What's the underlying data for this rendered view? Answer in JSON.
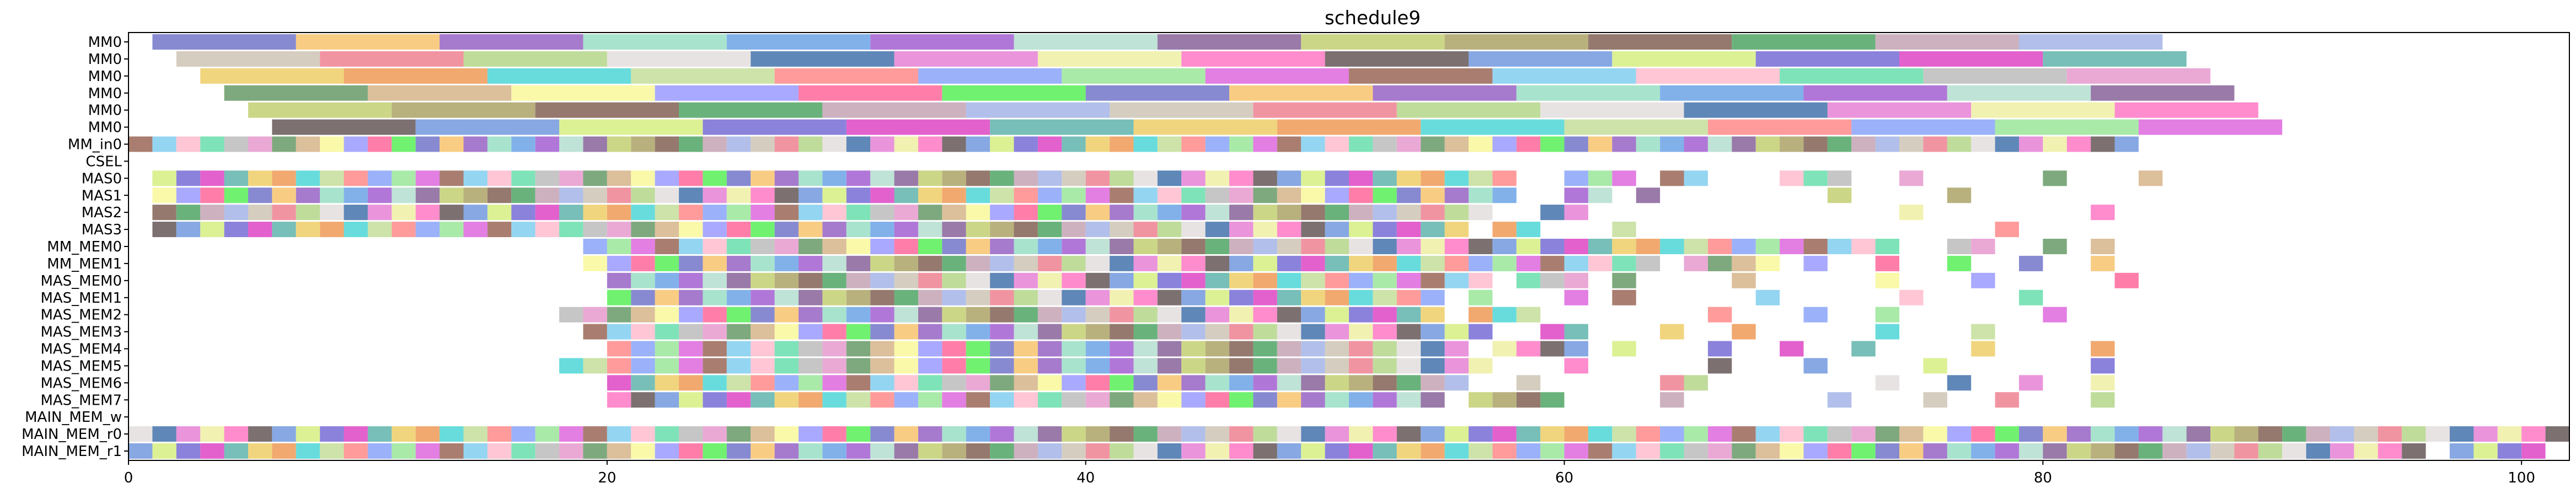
{
  "chart_data": {
    "type": "gantt",
    "title": "schedule9",
    "xlabel": "",
    "ylabel": "",
    "xlim": [
      0,
      102
    ],
    "x_ticks": [
      0,
      20,
      40,
      60,
      80,
      100
    ],
    "grid": false,
    "legend": "none",
    "rows": [
      "MM0",
      "MM0",
      "MM0",
      "MM0",
      "MM0",
      "MM0",
      "MM_in0",
      "CSEL",
      "MAS0",
      "MAS1",
      "MAS2",
      "MAS3",
      "MM_MEM0",
      "MM_MEM1",
      "MAS_MEM0",
      "MAS_MEM1",
      "MAS_MEM2",
      "MAS_MEM3",
      "MAS_MEM4",
      "MAS_MEM5",
      "MAS_MEM6",
      "MAS_MEM7",
      "MAIN_MEM_w",
      "MAIN_MEM_r0",
      "MAIN_MEM_r1"
    ],
    "long_rows": [
      {
        "row": 0,
        "start": 1.0,
        "duration": 6.0,
        "count": 14
      },
      {
        "row": 1,
        "start": 2.0,
        "duration": 6.0,
        "count": 14
      },
      {
        "row": 2,
        "start": 3.0,
        "duration": 6.0,
        "count": 14
      },
      {
        "row": 3,
        "start": 4.0,
        "duration": 6.0,
        "count": 14
      },
      {
        "row": 4,
        "start": 5.0,
        "duration": 6.0,
        "count": 14
      },
      {
        "row": 5,
        "start": 6.0,
        "duration": 6.0,
        "count": 14
      }
    ],
    "short_rows": [
      {
        "row": 6,
        "segments": [
          [
            0,
            84
          ]
        ]
      },
      {
        "row": 8,
        "segments": [
          [
            1,
            58
          ],
          [
            60,
            63
          ],
          [
            64,
            66
          ],
          [
            69,
            72
          ],
          [
            74,
            75
          ],
          [
            80,
            81
          ],
          [
            84,
            85
          ]
        ]
      },
      {
        "row": 9,
        "segments": [
          [
            1,
            58
          ],
          [
            60,
            62
          ],
          [
            63,
            64
          ],
          [
            71,
            72
          ],
          [
            76,
            77
          ]
        ]
      },
      {
        "row": 10,
        "segments": [
          [
            1,
            19
          ],
          [
            19,
            57
          ],
          [
            59,
            61
          ],
          [
            74,
            75
          ],
          [
            82,
            83
          ]
        ]
      },
      {
        "row": 11,
        "segments": [
          [
            1,
            19
          ],
          [
            19,
            56
          ],
          [
            57,
            59
          ],
          [
            62,
            63
          ],
          [
            78,
            79
          ]
        ]
      },
      {
        "row": 12,
        "segments": [
          [
            19,
            74
          ],
          [
            76,
            78
          ],
          [
            80,
            81
          ],
          [
            82,
            83
          ]
        ]
      },
      {
        "row": 13,
        "segments": [
          [
            19,
            64
          ],
          [
            65,
            69
          ],
          [
            70,
            71
          ],
          [
            73,
            74
          ],
          [
            76,
            77
          ],
          [
            79,
            80
          ],
          [
            82,
            83
          ]
        ]
      },
      {
        "row": 14,
        "segments": [
          [
            20,
            57
          ],
          [
            58,
            61
          ],
          [
            62,
            63
          ],
          [
            67,
            68
          ],
          [
            73,
            74
          ],
          [
            77,
            78
          ],
          [
            83,
            84
          ]
        ]
      },
      {
        "row": 15,
        "segments": [
          [
            20,
            55
          ],
          [
            56,
            57
          ],
          [
            60,
            61
          ],
          [
            62,
            63
          ],
          [
            68,
            69
          ],
          [
            74,
            75
          ],
          [
            79,
            80
          ]
        ]
      },
      {
        "row": 16,
        "segments": [
          [
            18,
            55
          ],
          [
            56,
            59
          ],
          [
            66,
            67
          ],
          [
            70,
            71
          ],
          [
            73,
            74
          ],
          [
            80,
            81
          ]
        ]
      },
      {
        "row": 17,
        "segments": [
          [
            19,
            57
          ],
          [
            59,
            61
          ],
          [
            64,
            65
          ],
          [
            67,
            68
          ],
          [
            73,
            74
          ],
          [
            77,
            78
          ]
        ]
      },
      {
        "row": 18,
        "segments": [
          [
            20,
            56
          ],
          [
            57,
            61
          ],
          [
            62,
            63
          ],
          [
            66,
            67
          ],
          [
            69,
            70
          ],
          [
            72,
            73
          ],
          [
            77,
            78
          ],
          [
            82,
            83
          ]
        ]
      },
      {
        "row": 19,
        "segments": [
          [
            18,
            57
          ],
          [
            60,
            61
          ],
          [
            66,
            67
          ],
          [
            70,
            71
          ],
          [
            75,
            76
          ],
          [
            82,
            83
          ]
        ]
      },
      {
        "row": 20,
        "segments": [
          [
            20,
            56
          ],
          [
            58,
            59
          ],
          [
            64,
            66
          ],
          [
            73,
            74
          ],
          [
            76,
            77
          ],
          [
            79,
            80
          ],
          [
            82,
            83
          ]
        ]
      },
      {
        "row": 21,
        "segments": [
          [
            20,
            55
          ],
          [
            56,
            60
          ],
          [
            64,
            65
          ],
          [
            71,
            72
          ],
          [
            75,
            76
          ],
          [
            78,
            79
          ],
          [
            82,
            83
          ]
        ]
      },
      {
        "row": 23,
        "segments": [
          [
            0,
            102
          ]
        ]
      },
      {
        "row": 24,
        "segments": [
          [
            0,
            96
          ],
          [
            97,
            101
          ]
        ]
      }
    ]
  }
}
